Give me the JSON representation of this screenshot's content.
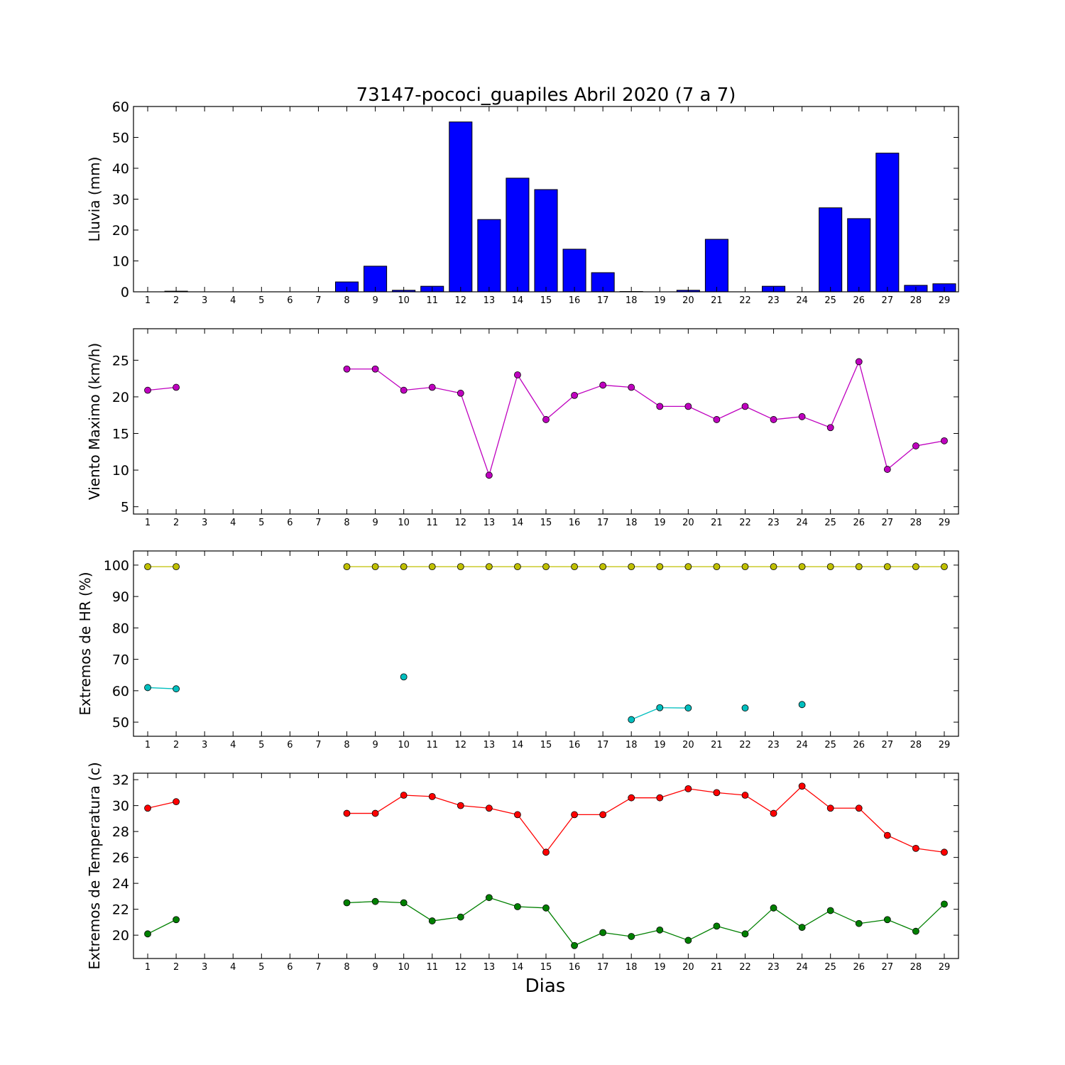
{
  "title": "73147-pococi_guapiles Abril 2020  (7 a 7)",
  "xlabel": "Dias",
  "chart_data": [
    {
      "type": "bar",
      "ylabel": "Lluvia (mm)",
      "ylim": [
        0,
        60
      ],
      "yticks": [
        0,
        10,
        20,
        30,
        40,
        50,
        60
      ],
      "x": [
        1,
        2,
        3,
        4,
        5,
        6,
        7,
        8,
        9,
        10,
        11,
        12,
        13,
        14,
        15,
        16,
        17,
        18,
        19,
        20,
        21,
        22,
        23,
        24,
        25,
        26,
        27,
        28,
        29
      ],
      "series": [
        {
          "color": "#0000ff",
          "values": [
            0,
            0.2,
            0,
            0,
            0,
            0,
            0,
            3.2,
            8.3,
            0.5,
            1.8,
            55,
            23.4,
            36.8,
            33.1,
            13.8,
            6.2,
            0.1,
            0,
            0.5,
            17,
            0,
            1.8,
            0,
            27.2,
            23.7,
            44.9,
            2.1,
            2.6
          ]
        }
      ]
    },
    {
      "type": "line",
      "ylabel": "Viento Maximo (km/h)",
      "ylim": [
        4,
        29.3
      ],
      "yticks": [
        5,
        10,
        15,
        20,
        25
      ],
      "x": [
        1,
        2,
        3,
        4,
        5,
        6,
        7,
        8,
        9,
        10,
        11,
        12,
        13,
        14,
        15,
        16,
        17,
        18,
        19,
        20,
        21,
        22,
        23,
        24,
        25,
        26,
        27,
        28,
        29
      ],
      "series": [
        {
          "color": "#bf00bf",
          "values": [
            20.9,
            21.3,
            null,
            null,
            null,
            null,
            null,
            23.8,
            23.8,
            20.9,
            21.3,
            20.5,
            9.3,
            23.0,
            16.9,
            20.2,
            21.6,
            21.3,
            18.7,
            18.7,
            16.9,
            18.7,
            16.9,
            17.3,
            15.8,
            24.8,
            10.1,
            13.3,
            14.0
          ]
        }
      ]
    },
    {
      "type": "line",
      "ylabel": "Extremos de HR (%)",
      "ylim": [
        45.5,
        104.5
      ],
      "yticks": [
        50,
        60,
        70,
        80,
        90,
        100
      ],
      "x": [
        1,
        2,
        3,
        4,
        5,
        6,
        7,
        8,
        9,
        10,
        11,
        12,
        13,
        14,
        15,
        16,
        17,
        18,
        19,
        20,
        21,
        22,
        23,
        24,
        25,
        26,
        27,
        28,
        29
      ],
      "series": [
        {
          "color": "#bfbf00",
          "values": [
            99.5,
            99.5,
            null,
            null,
            null,
            null,
            null,
            99.5,
            99.5,
            99.5,
            99.5,
            99.5,
            99.5,
            99.5,
            99.5,
            99.5,
            99.5,
            99.5,
            99.5,
            99.5,
            99.5,
            99.5,
            99.5,
            99.5,
            99.5,
            99.5,
            99.5,
            99.5,
            99.5
          ]
        },
        {
          "color": "#00bfbf",
          "values": [
            61.0,
            60.6,
            null,
            null,
            null,
            null,
            null,
            null,
            null,
            64.4,
            null,
            null,
            null,
            null,
            null,
            null,
            null,
            50.8,
            54.6,
            54.5,
            null,
            54.5,
            null,
            55.6,
            null,
            null,
            null,
            null,
            null
          ]
        }
      ]
    },
    {
      "type": "line",
      "ylabel": "Extremos de Temperatura (c)",
      "ylim": [
        18.2,
        32.5
      ],
      "yticks": [
        20,
        22,
        24,
        26,
        28,
        30,
        32
      ],
      "x": [
        1,
        2,
        3,
        4,
        5,
        6,
        7,
        8,
        9,
        10,
        11,
        12,
        13,
        14,
        15,
        16,
        17,
        18,
        19,
        20,
        21,
        22,
        23,
        24,
        25,
        26,
        27,
        28,
        29
      ],
      "series": [
        {
          "color": "#ff0000",
          "values": [
            29.8,
            30.3,
            null,
            null,
            null,
            null,
            null,
            29.4,
            29.4,
            30.8,
            30.7,
            30.0,
            29.8,
            29.3,
            26.4,
            29.3,
            29.3,
            30.6,
            30.6,
            31.3,
            31.0,
            30.8,
            29.4,
            31.5,
            29.8,
            29.8,
            27.7,
            26.7,
            26.4
          ]
        },
        {
          "color": "#008000",
          "values": [
            20.1,
            21.2,
            null,
            null,
            null,
            null,
            null,
            22.5,
            22.6,
            22.5,
            21.1,
            21.4,
            22.9,
            22.2,
            22.1,
            19.2,
            20.2,
            19.9,
            20.4,
            19.6,
            20.7,
            20.1,
            22.1,
            20.6,
            21.9,
            20.9,
            21.2,
            20.3,
            22.4
          ]
        }
      ]
    }
  ]
}
